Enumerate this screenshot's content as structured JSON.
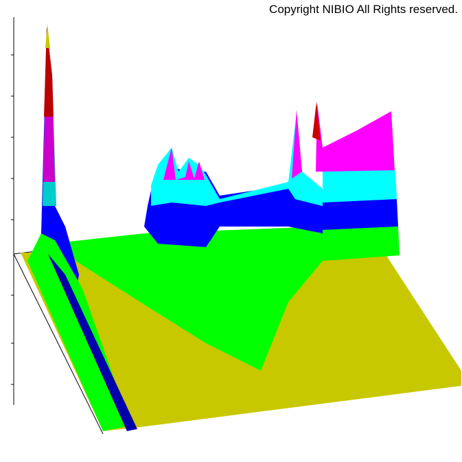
{
  "copyright": "Copyright NIBIO All Rights reserved."
}
